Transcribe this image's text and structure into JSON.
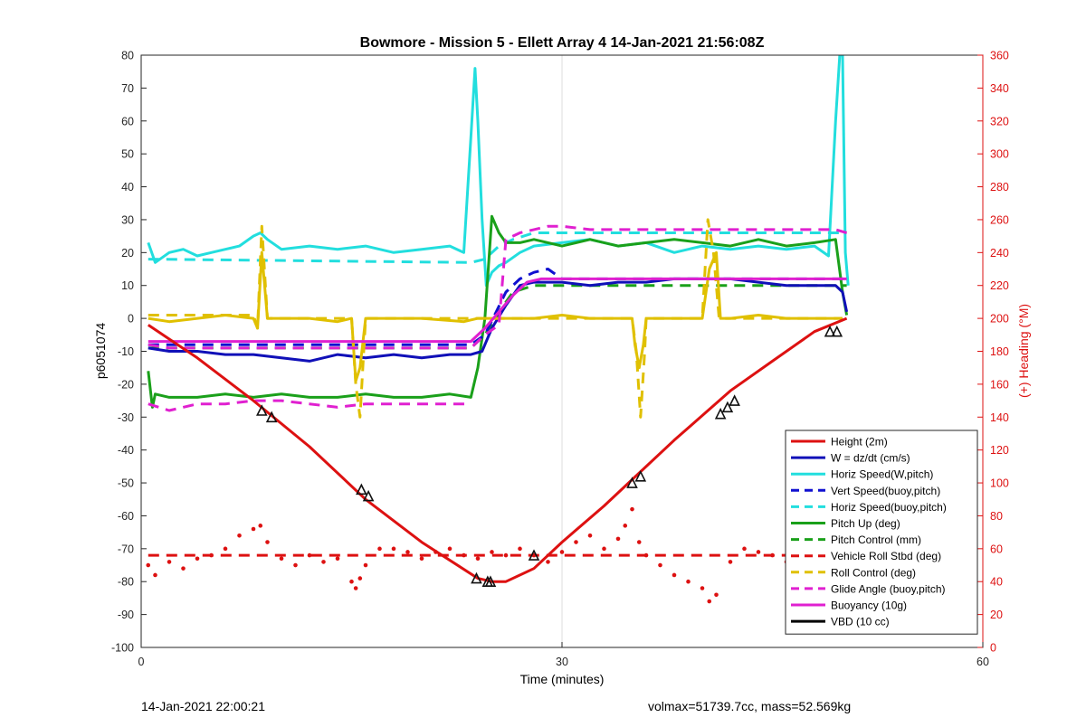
{
  "chart_data": {
    "type": "line",
    "title": "Bowmore - Mission 5 - Ellett Array 4 14-Jan-2021 21:56:08Z",
    "xlabel": "Time (minutes)",
    "ylabel": "p6051074",
    "y2label": "(+) Heading (°M)",
    "xlim": [
      0,
      60
    ],
    "ylim": [
      -100,
      80
    ],
    "y2lim": [
      0,
      360
    ],
    "xticks": [
      0,
      30,
      60
    ],
    "yticks": [
      -100,
      -90,
      -80,
      -70,
      -60,
      -50,
      -40,
      -30,
      -20,
      -10,
      0,
      10,
      20,
      30,
      40,
      50,
      60,
      70,
      80
    ],
    "y2ticks": [
      0,
      20,
      40,
      60,
      80,
      100,
      120,
      140,
      160,
      180,
      200,
      220,
      240,
      260,
      280,
      300,
      320,
      340,
      360
    ],
    "grid": "x",
    "legend_position": "lower-right",
    "series": [
      {
        "name": "Height (2m)",
        "color": "#dd1111",
        "style": "solid",
        "x": [
          0.5,
          4,
          8,
          12,
          16,
          20,
          24,
          25,
          26,
          28,
          30,
          33,
          35,
          38,
          42,
          45,
          48,
          50.3
        ],
        "y": [
          -2,
          -12,
          -25,
          -39,
          -55,
          -68,
          -79,
          -80,
          -80,
          -76,
          -68,
          -57,
          -49,
          -37,
          -22,
          -13,
          -4,
          0
        ]
      },
      {
        "name": "W = dz/dt (cm/s)",
        "color": "#1010b8",
        "style": "solid",
        "x": [
          0.5,
          2,
          4,
          6,
          8,
          10,
          12,
          14,
          16,
          18,
          20,
          22,
          23.5,
          24.3,
          25,
          26,
          27,
          28,
          29,
          30,
          32,
          34,
          36,
          38,
          40,
          42,
          44,
          46,
          48,
          49.5,
          50,
          50.3
        ],
        "y": [
          -9,
          -10,
          -10,
          -11,
          -11,
          -12,
          -13,
          -11,
          -12,
          -11,
          -12,
          -11,
          -11,
          -10,
          -3,
          4,
          10,
          11,
          11,
          11,
          10,
          11,
          11,
          12,
          12,
          12,
          11,
          10,
          10,
          10,
          8,
          2
        ]
      },
      {
        "name": "Horiz Speed(W,pitch)",
        "color": "#22dede",
        "style": "solid",
        "x": [
          0.5,
          1,
          2,
          3,
          4,
          5,
          6,
          7,
          8,
          8.5,
          9,
          10,
          12,
          14,
          16,
          18,
          20,
          22,
          23,
          23.5,
          23.8,
          24,
          24.3,
          24.6,
          25,
          25.5,
          26,
          27,
          28,
          30,
          32,
          34,
          36,
          38,
          40,
          42,
          44,
          46,
          48,
          49,
          49.5,
          49.8,
          50,
          50.2,
          50.4
        ],
        "y": [
          23,
          17,
          20,
          21,
          19,
          20,
          21,
          22,
          25,
          26,
          24,
          21,
          22,
          21,
          22,
          20,
          21,
          22,
          20,
          55,
          76,
          60,
          30,
          10,
          14,
          16,
          17,
          20,
          22,
          23,
          24,
          22,
          23,
          20,
          22,
          21,
          22,
          21,
          22,
          19,
          60,
          80,
          80,
          20,
          10
        ]
      },
      {
        "name": "Vert Speed(buoy,pitch)",
        "color": "#1010d0",
        "style": "dashed",
        "x": [
          0.5,
          23.5,
          24.5,
          26,
          27,
          28,
          29,
          30,
          32,
          34,
          36,
          38,
          40,
          42,
          44,
          46,
          48,
          50.3
        ],
        "y": [
          -8,
          -8,
          -5,
          8,
          12,
          14,
          15,
          12,
          12,
          12,
          12,
          12,
          12,
          12,
          12,
          12,
          12,
          12
        ]
      },
      {
        "name": "Horiz Speed(buoy,pitch)",
        "color": "#22dede",
        "style": "dashed",
        "x": [
          0.5,
          23.5,
          24.5,
          25.5,
          26.5,
          28,
          30,
          34,
          38,
          42,
          46,
          50.3
        ],
        "y": [
          18,
          17,
          18,
          22,
          24,
          26,
          26,
          26,
          26,
          26,
          26,
          26
        ]
      },
      {
        "name": "Pitch Up (deg)",
        "color": "#1aa01a",
        "style": "solid",
        "x": [
          0.5,
          0.8,
          1,
          2,
          4,
          6,
          8,
          10,
          12,
          14,
          16,
          18,
          20,
          22,
          23.5,
          24,
          24.5,
          25,
          25.5,
          26,
          27,
          28,
          30,
          32,
          34,
          36,
          38,
          40,
          42,
          44,
          46,
          48,
          49.5,
          50,
          50.3
        ],
        "y": [
          -16,
          -27,
          -23,
          -24,
          -24,
          -23,
          -24,
          -23,
          -24,
          -24,
          -23,
          -24,
          -24,
          -23,
          -24,
          -15,
          0,
          31,
          26,
          23,
          23,
          24,
          22,
          24,
          22,
          23,
          24,
          23,
          22,
          24,
          22,
          23,
          24,
          8,
          1
        ]
      },
      {
        "name": "Pitch Control (mm)",
        "color": "#1aa01a",
        "style": "dashed",
        "x": [
          0.5,
          23.5,
          24.5,
          25.5,
          26.5,
          28,
          30,
          34,
          38,
          42,
          46,
          48,
          50.3
        ],
        "y": [
          -9,
          -9,
          -5,
          2,
          8,
          10,
          10,
          10,
          10,
          10,
          10,
          10,
          10
        ]
      },
      {
        "name": "Vehicle Roll Stbd (deg)",
        "color": "#dd1111",
        "style": "dotted",
        "x": [
          0.5,
          1,
          2,
          3,
          4,
          5,
          6,
          7,
          8,
          8.5,
          9,
          10,
          11,
          12,
          13,
          14,
          15,
          15.3,
          15.6,
          16,
          17,
          18,
          19,
          20,
          21,
          22,
          23,
          24,
          25,
          26,
          27,
          28,
          29,
          30,
          31,
          32,
          33,
          34,
          34.5,
          35,
          35.5,
          36,
          37,
          38,
          39,
          40,
          40.5,
          41,
          42,
          43,
          44,
          45,
          46,
          47,
          48,
          49,
          50
        ],
        "y": [
          -75,
          -78,
          -74,
          -76,
          -73,
          -72,
          -70,
          -66,
          -64,
          -63,
          -68,
          -73,
          -75,
          -72,
          -74,
          -73,
          -80,
          -82,
          -79,
          -75,
          -70,
          -70,
          -71,
          -73,
          -71,
          -70,
          -72,
          -73,
          -71,
          -72,
          -70,
          -72,
          -74,
          -71,
          -68,
          -66,
          -70,
          -67,
          -63,
          -58,
          -68,
          -72,
          -75,
          -78,
          -80,
          -82,
          -86,
          -84,
          -74,
          -70,
          -71,
          -72,
          -74,
          -75,
          -76,
          -79,
          -85
        ]
      },
      {
        "name": "Roll Control (deg)",
        "color": "#dd1111",
        "style": "dashed",
        "x": [
          0.5,
          50.3
        ],
        "y": [
          -72,
          -72
        ]
      },
      {
        "name": "Glide Angle (buoy,pitch)",
        "color": "#e0c000",
        "style": "solid",
        "x": [
          0.5,
          2,
          4,
          6,
          8,
          8.3,
          8.6,
          9,
          10,
          12,
          14,
          15,
          15.3,
          15.6,
          16,
          16.2,
          17,
          20,
          23,
          24,
          25,
          26,
          28,
          30,
          32,
          34,
          35,
          35.2,
          35.5,
          35.8,
          36,
          36.3,
          38,
          40,
          40.5,
          41,
          41.3,
          42,
          44,
          46,
          48,
          50
        ],
        "y": [
          0,
          -1,
          0,
          1,
          0,
          -3,
          20,
          0,
          0,
          0,
          -1,
          0,
          -19,
          -15,
          0,
          0,
          0,
          0,
          -1,
          0,
          0,
          0,
          0,
          1,
          0,
          0,
          0,
          -8,
          -15,
          -8,
          0,
          0,
          0,
          0,
          15,
          20,
          0,
          0,
          1,
          0,
          0,
          0
        ]
      },
      {
        "name": "Buoyancy (10g)",
        "color": "#e0c000",
        "style": "dashed",
        "x": [
          0.5,
          8,
          8.3,
          8.6,
          9,
          15,
          15.3,
          15.6,
          16,
          23,
          24,
          25,
          30,
          34,
          35,
          35.3,
          35.6,
          35.9,
          36,
          40,
          40.4,
          40.8,
          41.2,
          42,
          48,
          50
        ],
        "y": [
          1,
          1,
          -3,
          28,
          0,
          0,
          -20,
          -30,
          0,
          0,
          0,
          0,
          0,
          0,
          0,
          -10,
          -30,
          -10,
          0,
          0,
          30,
          20,
          0,
          0,
          0,
          0
        ]
      },
      {
        "name": "VBD (10 cc)",
        "color": "#e020d0",
        "style": "dashed",
        "x": [
          0.5,
          2,
          4,
          6,
          8,
          10,
          12,
          14,
          16,
          18,
          20,
          22,
          23.5,
          24.5,
          25.5,
          26,
          27,
          28,
          29,
          30,
          32,
          34,
          36,
          38,
          40,
          42,
          44,
          46,
          48,
          49.5,
          50.3
        ],
        "y": [
          -8,
          -9,
          -9,
          -9,
          -9,
          -9,
          -9,
          -9,
          -9,
          -9,
          -9,
          -9,
          -9,
          -5,
          -2,
          24,
          26,
          27,
          28,
          28,
          27,
          27,
          27,
          27,
          27,
          27,
          27,
          27,
          27,
          27,
          26
        ]
      },
      {
        "name": "Vehicle Roll Stbd (deg)",
        "color": "#e020d0",
        "style": "dashed",
        "x": [
          0.5,
          2,
          4,
          6,
          8,
          10,
          12,
          14,
          16,
          18,
          20,
          22,
          23.5
        ],
        "y": [
          -26,
          -28,
          -26,
          -26,
          -25,
          -25,
          -26,
          -27,
          -26,
          -26,
          -26,
          -26,
          -26
        ]
      },
      {
        "name": "Glide Angle (buoy,pitch)",
        "color": "#e020d0",
        "style": "solid",
        "x": [
          0.5,
          23.5,
          24.5,
          25.5,
          26.5,
          27.5,
          28.5,
          30,
          32,
          34,
          38,
          42,
          46,
          50.3
        ],
        "y": [
          -7,
          -7,
          -3,
          2,
          7,
          11,
          12,
          12,
          12,
          12,
          12,
          12,
          12,
          12
        ]
      },
      {
        "name": "VBD (10 cc)",
        "color": "#000000",
        "style": "solid",
        "x": [
          0.5,
          23.5,
          24.5,
          25.5,
          26.5,
          27.5,
          28.5,
          30,
          34,
          38,
          42,
          46,
          50.3
        ],
        "y": [
          -7,
          -7,
          -3,
          2,
          6,
          10,
          11,
          11,
          11,
          11,
          11,
          11,
          11
        ]
      }
    ],
    "markers": {
      "x": [
        8.6,
        9.3,
        15.7,
        16.2,
        23.9,
        24.7,
        24.9,
        28,
        35,
        35.6,
        41.3,
        41.8,
        42.3,
        49.1,
        49.6
      ],
      "y": [
        -28,
        -30,
        -52,
        -54,
        -79,
        -80,
        -80,
        -72,
        -50,
        -48,
        -29,
        -27,
        -25,
        -4,
        -4
      ]
    },
    "legend": [
      {
        "label": "Height (2m)",
        "color": "#dd1111",
        "style": "solid"
      },
      {
        "label": "W = dz/dt (cm/s)",
        "color": "#1010b8",
        "style": "solid"
      },
      {
        "label": "Horiz Speed(W,pitch)",
        "color": "#22dede",
        "style": "solid"
      },
      {
        "label": "Vert Speed(buoy,pitch)",
        "color": "#1010d0",
        "style": "dashed"
      },
      {
        "label": "Horiz Speed(buoy,pitch)",
        "color": "#22dede",
        "style": "dashed"
      },
      {
        "label": "Pitch Up (deg)",
        "color": "#1aa01a",
        "style": "solid"
      },
      {
        "label": "Pitch Control (mm)",
        "color": "#1aa01a",
        "style": "dashed"
      },
      {
        "label": "Vehicle Roll Stbd (deg)",
        "color": "#dd1111",
        "style": "dashed"
      },
      {
        "label": "Roll Control (deg)",
        "color": "#e0c000",
        "style": "dashed"
      },
      {
        "label": "Glide Angle (buoy,pitch)",
        "color": "#e020d0",
        "style": "dashed"
      },
      {
        "label": "Buoyancy (10g)",
        "color": "#e020d0",
        "style": "solid"
      },
      {
        "label": "VBD (10 cc)",
        "color": "#000000",
        "style": "solid"
      }
    ]
  },
  "footer": {
    "left": "14-Jan-2021 22:00:21",
    "right": "volmax=51739.7cc, mass=52.569kg"
  }
}
